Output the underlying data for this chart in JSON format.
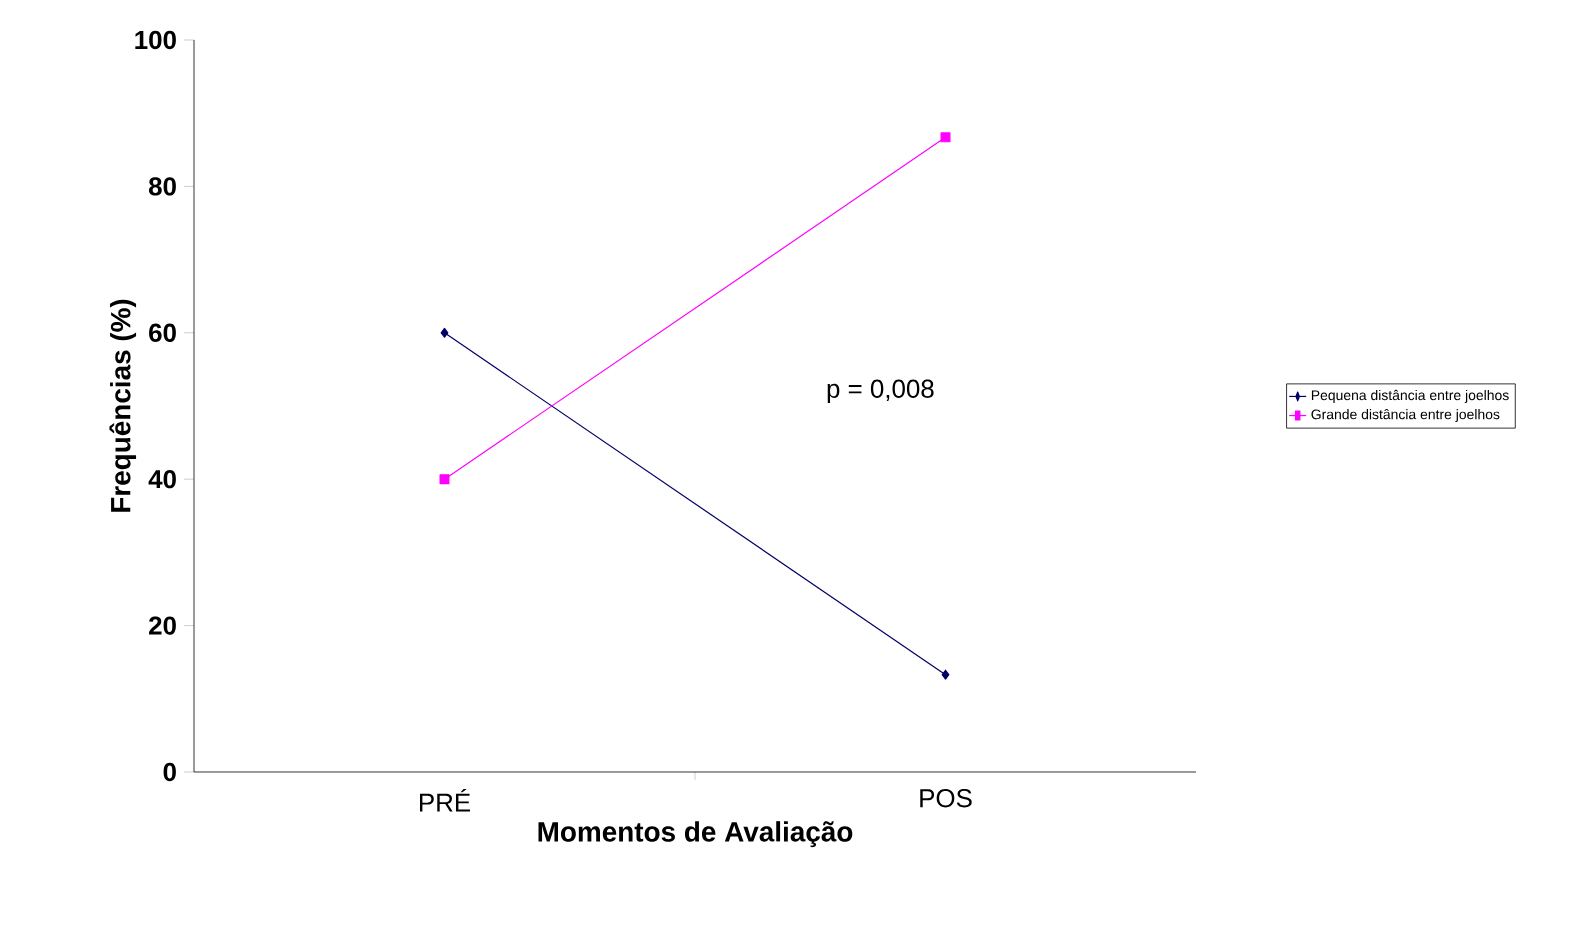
{
  "chart_data": {
    "type": "line",
    "xlabel": "Momentos de Avaliação",
    "ylabel": "Frequências (%)",
    "categories": [
      "PRÉ",
      "POS"
    ],
    "series": [
      {
        "name": "Pequena distância entre joelhos",
        "color": "#000066",
        "marker": "diamond",
        "values": [
          60,
          13.3
        ]
      },
      {
        "name": "Grande distância entre joelhos",
        "color": "#ff00ff",
        "marker": "square",
        "values": [
          40,
          86.7
        ]
      }
    ],
    "ylim": [
      0,
      100
    ],
    "yticks": [
      0,
      20,
      40,
      60,
      80,
      100
    ],
    "grid": false,
    "legend": "right",
    "annotations": [
      "p = 0,008"
    ]
  }
}
